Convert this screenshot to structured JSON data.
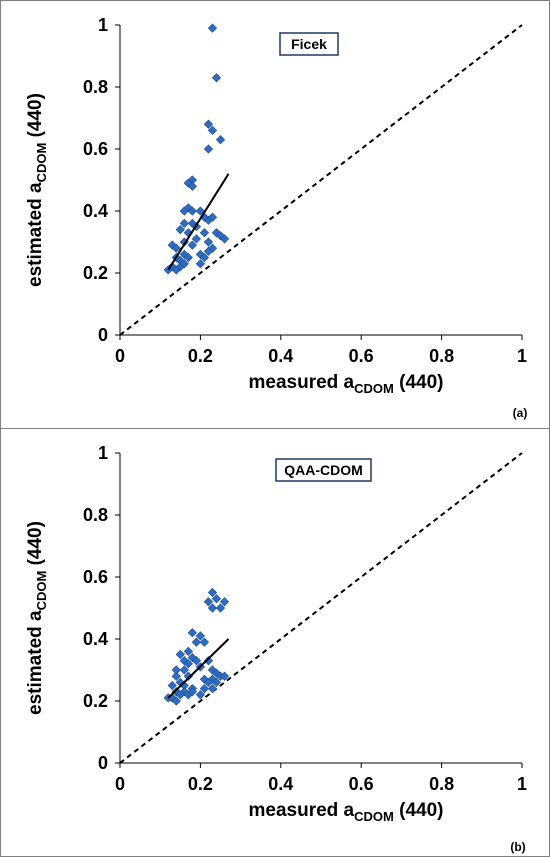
{
  "chart_data": [
    {
      "panel": "(a)",
      "type": "scatter",
      "title": "Ficek",
      "xlabel": "measured a",
      "xlabel_sub": "CDOM",
      "xlabel_tail": " (440)",
      "ylabel": "estimated a",
      "ylabel_sub": "CDOM",
      "ylabel_tail": " (440)",
      "xlim": [
        0,
        1
      ],
      "ylim": [
        0,
        1
      ],
      "xticks": [
        "0",
        "0.2",
        "0.4",
        "0.6",
        "0.8",
        "1"
      ],
      "yticks": [
        "0",
        "0.2",
        "0.4",
        "0.6",
        "0.8",
        "1"
      ],
      "marker_color": "#2e6cc4",
      "points": [
        [
          0.23,
          0.99
        ],
        [
          0.24,
          0.83
        ],
        [
          0.22,
          0.68
        ],
        [
          0.23,
          0.66
        ],
        [
          0.25,
          0.63
        ],
        [
          0.22,
          0.6
        ],
        [
          0.18,
          0.5
        ],
        [
          0.17,
          0.49
        ],
        [
          0.18,
          0.48
        ],
        [
          0.17,
          0.41
        ],
        [
          0.16,
          0.4
        ],
        [
          0.18,
          0.4
        ],
        [
          0.2,
          0.4
        ],
        [
          0.22,
          0.37
        ],
        [
          0.23,
          0.38
        ],
        [
          0.21,
          0.38
        ],
        [
          0.18,
          0.36
        ],
        [
          0.16,
          0.36
        ],
        [
          0.19,
          0.35
        ],
        [
          0.15,
          0.34
        ],
        [
          0.17,
          0.33
        ],
        [
          0.21,
          0.33
        ],
        [
          0.24,
          0.33
        ],
        [
          0.25,
          0.32
        ],
        [
          0.26,
          0.31
        ],
        [
          0.19,
          0.31
        ],
        [
          0.22,
          0.3
        ],
        [
          0.16,
          0.3
        ],
        [
          0.13,
          0.29
        ],
        [
          0.14,
          0.28
        ],
        [
          0.18,
          0.29
        ],
        [
          0.23,
          0.28
        ],
        [
          0.22,
          0.27
        ],
        [
          0.16,
          0.26
        ],
        [
          0.2,
          0.26
        ],
        [
          0.21,
          0.25
        ],
        [
          0.14,
          0.25
        ],
        [
          0.15,
          0.24
        ],
        [
          0.2,
          0.23
        ],
        [
          0.13,
          0.22
        ],
        [
          0.15,
          0.22
        ],
        [
          0.12,
          0.21
        ],
        [
          0.14,
          0.21
        ],
        [
          0.16,
          0.23
        ],
        [
          0.17,
          0.25
        ]
      ],
      "fit_line": [
        [
          0.12,
          0.21
        ],
        [
          0.27,
          0.52
        ]
      ],
      "one_to_one": [
        [
          0,
          0
        ],
        [
          1,
          1
        ]
      ]
    },
    {
      "panel": "(b)",
      "type": "scatter",
      "title": "QAA-CDOM",
      "xlabel": "measured a",
      "xlabel_sub": "CDOM",
      "xlabel_tail": " (440)",
      "ylabel": "estimated a",
      "ylabel_sub": "CDOM",
      "ylabel_tail": " (440)",
      "xlim": [
        0,
        1
      ],
      "ylim": [
        0,
        1
      ],
      "xticks": [
        "0",
        "0.2",
        "0.4",
        "0.6",
        "0.8",
        "1"
      ],
      "yticks": [
        "0",
        "0.2",
        "0.4",
        "0.6",
        "0.8",
        "1"
      ],
      "marker_color": "#2e6cc4",
      "points": [
        [
          0.23,
          0.55
        ],
        [
          0.24,
          0.53
        ],
        [
          0.22,
          0.52
        ],
        [
          0.26,
          0.52
        ],
        [
          0.23,
          0.5
        ],
        [
          0.25,
          0.5
        ],
        [
          0.18,
          0.42
        ],
        [
          0.2,
          0.41
        ],
        [
          0.19,
          0.39
        ],
        [
          0.21,
          0.39
        ],
        [
          0.17,
          0.36
        ],
        [
          0.15,
          0.35
        ],
        [
          0.18,
          0.34
        ],
        [
          0.16,
          0.33
        ],
        [
          0.19,
          0.33
        ],
        [
          0.22,
          0.33
        ],
        [
          0.17,
          0.32
        ],
        [
          0.2,
          0.31
        ],
        [
          0.14,
          0.3
        ],
        [
          0.16,
          0.3
        ],
        [
          0.23,
          0.3
        ],
        [
          0.24,
          0.29
        ],
        [
          0.25,
          0.28
        ],
        [
          0.26,
          0.28
        ],
        [
          0.14,
          0.28
        ],
        [
          0.17,
          0.28
        ],
        [
          0.21,
          0.27
        ],
        [
          0.23,
          0.27
        ],
        [
          0.15,
          0.26
        ],
        [
          0.22,
          0.26
        ],
        [
          0.24,
          0.26
        ],
        [
          0.13,
          0.25
        ],
        [
          0.16,
          0.25
        ],
        [
          0.18,
          0.24
        ],
        [
          0.21,
          0.24
        ],
        [
          0.23,
          0.24
        ],
        [
          0.14,
          0.23
        ],
        [
          0.16,
          0.23
        ],
        [
          0.12,
          0.21
        ],
        [
          0.13,
          0.21
        ],
        [
          0.15,
          0.22
        ],
        [
          0.17,
          0.22
        ],
        [
          0.14,
          0.2
        ],
        [
          0.18,
          0.23
        ],
        [
          0.2,
          0.22
        ]
      ],
      "fit_line": [
        [
          0.12,
          0.21
        ],
        [
          0.27,
          0.4
        ]
      ],
      "one_to_one": [
        [
          0,
          0
        ],
        [
          1,
          1
        ]
      ]
    }
  ]
}
